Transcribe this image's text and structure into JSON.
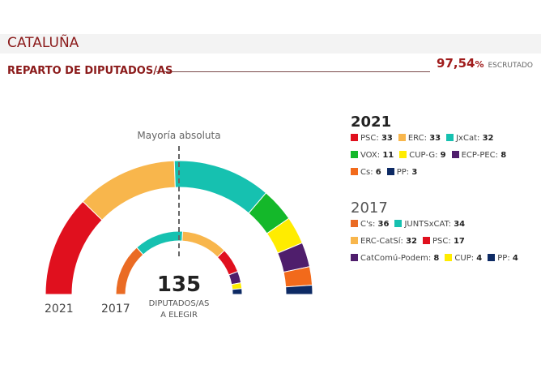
{
  "header": {
    "title": "CATALUÑA",
    "subtitle": "REPARTO DE DIPUTADOS/AS",
    "scrutiny_value": "97,54",
    "scrutiny_unit": "%",
    "scrutiny_label": "ESCRUTADO"
  },
  "chart_data": {
    "type": "pie",
    "subtype": "half-donut parliament",
    "total_seats": 135,
    "total_label": "135",
    "total_caption_1": "DIPUTADOS/AS",
    "total_caption_2": "A ELEGIR",
    "majority_label": "Mayoría absoluta",
    "series": [
      {
        "name": "2021",
        "parties": [
          {
            "name": "PSC",
            "seats": 33,
            "color": "#e0101e"
          },
          {
            "name": "ERC",
            "seats": 33,
            "color": "#f8b64c"
          },
          {
            "name": "JxCat",
            "seats": 32,
            "color": "#16c1b0"
          },
          {
            "name": "VOX",
            "seats": 11,
            "color": "#14b82a"
          },
          {
            "name": "CUP-G",
            "seats": 9,
            "color": "#ffec00"
          },
          {
            "name": "ECP-PEC",
            "seats": 8,
            "color": "#4f1e6c"
          },
          {
            "name": "Cs",
            "seats": 6,
            "color": "#f26a1b"
          },
          {
            "name": "PP",
            "seats": 3,
            "color": "#0d2a64"
          }
        ]
      },
      {
        "name": "2017",
        "parties": [
          {
            "name": "C's",
            "seats": 36,
            "color": "#ea6b24"
          },
          {
            "name": "JUNTSxCAT",
            "seats": 34,
            "color": "#16c1b0"
          },
          {
            "name": "ERC-CatSí",
            "seats": 32,
            "color": "#f8b64c"
          },
          {
            "name": "PSC",
            "seats": 17,
            "color": "#e0101e"
          },
          {
            "name": "CatComú-Podem",
            "seats": 8,
            "color": "#4f1e6c"
          },
          {
            "name": "CUP",
            "seats": 4,
            "color": "#ffec00"
          },
          {
            "name": "PP",
            "seats": 4,
            "color": "#0d2a64"
          }
        ]
      }
    ]
  }
}
